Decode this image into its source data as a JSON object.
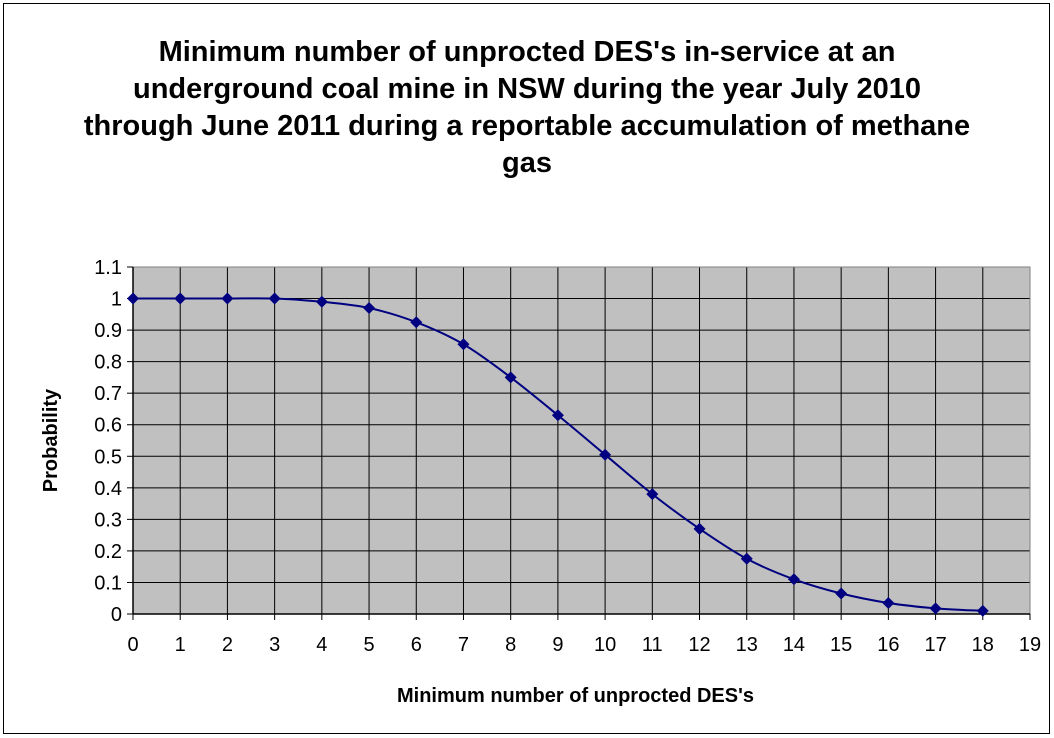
{
  "chart_data": {
    "type": "line",
    "title": "Minimum number of unprocted DES's in-service at an underground coal mine in NSW during the year July 2010 through June 2011 during a reportable accumulation of methane gas",
    "xlabel": "Minimum number of unprocted DES's",
    "ylabel": "Probability",
    "xlim": [
      0,
      19
    ],
    "ylim": [
      0,
      1.1
    ],
    "x_ticks": [
      "0",
      "1",
      "2",
      "3",
      "4",
      "5",
      "6",
      "7",
      "8",
      "9",
      "10",
      "11",
      "12",
      "13",
      "14",
      "15",
      "16",
      "17",
      "18",
      "19"
    ],
    "y_ticks": [
      "0",
      "0.1",
      "0.2",
      "0.3",
      "0.4",
      "0.5",
      "0.6",
      "0.7",
      "0.8",
      "0.9",
      "1",
      "1.1"
    ],
    "grid": true,
    "plot_background": "#C0C0C0",
    "series": [
      {
        "color": "#000080",
        "marker": "diamond",
        "x": [
          0,
          1,
          2,
          3,
          4,
          5,
          6,
          7,
          8,
          9,
          10,
          11,
          12,
          13,
          14,
          15,
          16,
          17,
          18
        ],
        "values": [
          1.0,
          1.0,
          1.0,
          1.0,
          0.99,
          0.97,
          0.925,
          0.855,
          0.75,
          0.63,
          0.505,
          0.38,
          0.27,
          0.175,
          0.11,
          0.065,
          0.035,
          0.018,
          0.01
        ]
      }
    ]
  }
}
